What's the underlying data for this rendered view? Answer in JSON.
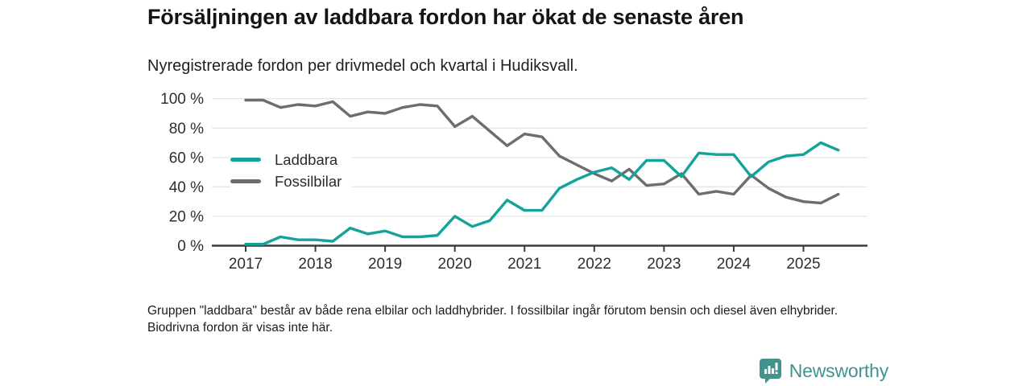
{
  "header": {
    "title": "Försäljningen av laddbara fordon har ökat de senaste åren",
    "subtitle": "Nyregistrerade fordon per drivmedel och kvartal i Hudiksvall."
  },
  "chart_data": {
    "type": "line",
    "x_start": "2017 Q1",
    "x_interval": "quarter",
    "x_tick_labels": [
      "2017",
      "2018",
      "2019",
      "2020",
      "2021",
      "2022",
      "2023",
      "2024",
      "2025"
    ],
    "y_tick_labels": [
      "0 %",
      "20 %",
      "40 %",
      "60 %",
      "80 %",
      "100 %"
    ],
    "ylim": [
      0,
      100
    ],
    "grid": "horizontal",
    "legend_position": "inside-left",
    "axis_color": "#3c3c3c",
    "grid_color": "#e3e3e3",
    "series": [
      {
        "name": "Laddbara",
        "color": "#13a39a",
        "values": [
          1,
          1,
          6,
          4,
          4,
          3,
          12,
          8,
          10,
          6,
          6,
          7,
          20,
          13,
          17,
          31,
          24,
          24,
          39,
          45,
          50,
          53,
          45,
          58,
          58,
          47,
          63,
          62,
          62,
          47,
          57,
          61,
          62,
          70,
          65
        ]
      },
      {
        "name": "Fossilbilar",
        "color": "#6d6d6d",
        "values": [
          99,
          99,
          94,
          96,
          95,
          98,
          88,
          91,
          90,
          94,
          96,
          95,
          81,
          88,
          78,
          68,
          76,
          74,
          61,
          55,
          49,
          44,
          52,
          41,
          42,
          49,
          35,
          37,
          35,
          48,
          39,
          33,
          30,
          29,
          35
        ]
      }
    ]
  },
  "footnote": {
    "text": "Gruppen \"laddbara\" består av både rena elbilar och laddhybrider. I fossilbilar ingår förutom bensin och diesel även elhybrider. Biodrivna fordon är visas inte här."
  },
  "logo": {
    "brand": "Newsworthy",
    "color": "#43928c",
    "icon": "bar-chart-speech-bubble"
  }
}
